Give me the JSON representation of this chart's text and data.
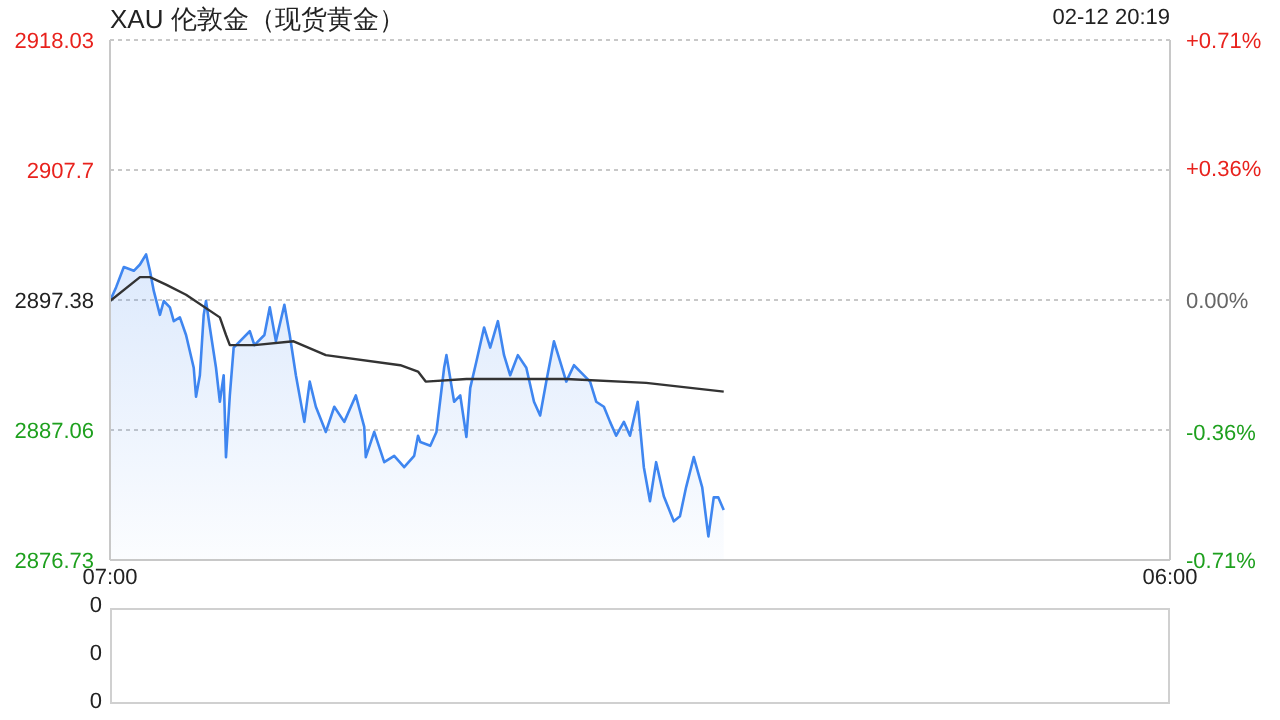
{
  "chart_data": [
    {
      "type": "line",
      "title": "XAU 伦敦金（现货黄金）",
      "subtitle": "02-12 20:19",
      "xlim": [
        "--02-12T07:00",
        "--02-13T06:00"
      ],
      "xticks": [
        {
          "value": "--02-12T07:00",
          "label": "07:00"
        },
        {
          "value": "--02-13T06:00",
          "label": "06:00"
        }
      ],
      "ylim": [
        2876.73,
        2918.03
      ],
      "yticks": [
        2876.73,
        2887.06,
        2897.38,
        2907.7,
        2918.03
      ],
      "y2lim": [
        -0.71,
        0.71
      ],
      "y2ticks": [
        {
          "value": -0.71,
          "label": "-0.71%"
        },
        {
          "value": -0.36,
          "label": "-0.36%"
        },
        {
          "value": 0,
          "label": "0.00%"
        },
        {
          "value": 0.36,
          "label": "+0.36%"
        },
        {
          "value": 0.71,
          "label": "+0.71%"
        }
      ],
      "grid": "y",
      "legend": false,
      "marker": "none",
      "series": [
        {
          "type": "area",
          "color": "#3f86f0",
          "x": [
            "--02-12T07:00",
            "--02-12T07:08",
            "--02-12T07:18",
            "--02-12T07:31",
            "--02-12T07:39",
            "--02-12T07:47",
            "--02-12T07:52",
            "--02-12T07:57",
            "--02-12T08:05",
            "--02-12T08:10",
            "--02-12T08:18",
            "--02-12T08:23",
            "--02-12T08:31",
            "--02-12T08:39",
            "--02-12T08:49",
            "--02-12T08:52",
            "--02-12T08:57",
            "--02-12T09:02",
            "--02-12T09:05",
            "--02-12T09:10",
            "--02-12T09:18",
            "--02-12T09:23",
            "--02-12T09:28",
            "--02-12T09:31",
            "--02-12T09:36",
            "--02-12T09:41",
            "--02-12T09:49",
            "--02-12T10:02",
            "--02-12T10:08",
            "--02-12T10:21",
            "--02-12T10:28",
            "--02-12T10:36",
            "--02-12T10:47",
            "--02-12T10:54",
            "--02-12T11:02",
            "--02-12T11:13",
            "--02-12T11:20",
            "--02-12T11:28",
            "--02-12T11:41",
            "--02-12T11:52",
            "--02-12T12:05",
            "--02-12T12:20",
            "--02-12T12:31",
            "--02-12T12:33",
            "--02-12T12:44",
            "--02-12T12:57",
            "--02-12T13:10",
            "--02-12T13:23",
            "--02-12T13:36",
            "--02-12T13:41",
            "--02-12T13:44",
            "--02-12T13:57",
            "--02-12T14:05",
            "--02-12T14:15",
            "--02-12T14:18",
            "--02-12T14:28",
            "--02-12T14:36",
            "--02-12T14:44",
            "--02-12T14:49",
            "--02-12T14:57",
            "--02-12T15:07",
            "--02-12T15:15",
            "--02-12T15:25",
            "--02-12T15:33",
            "--02-12T15:41",
            "--02-12T15:51",
            "--02-12T16:02",
            "--02-12T16:12",
            "--02-12T16:20",
            "--02-12T16:28",
            "--02-12T16:38",
            "--02-12T16:46",
            "--02-12T16:54",
            "--02-12T17:04",
            "--02-12T17:17",
            "--02-12T17:25",
            "--02-12T17:33",
            "--02-12T17:43",
            "--02-12T17:51",
            "--02-12T17:59",
            "--02-12T18:09",
            "--02-12T18:17",
            "--02-12T18:27",
            "--02-12T18:35",
            "--02-12T18:43",
            "--02-12T18:51",
            "--02-12T19:01",
            "--02-12T19:14",
            "--02-12T19:22",
            "--02-12T19:30",
            "--02-12T19:40",
            "--02-12T19:51",
            "--02-12T19:59",
            "--02-12T20:06",
            "--02-12T20:12",
            "--02-12T20:19"
          ],
          "values": [
            2897.3,
            2898.4,
            2900.0,
            2899.7,
            2900.2,
            2901.0,
            2899.7,
            2898.1,
            2896.2,
            2897.3,
            2896.8,
            2895.7,
            2896.0,
            2894.6,
            2892.0,
            2889.7,
            2891.4,
            2896.2,
            2897.3,
            2895.2,
            2892.0,
            2889.3,
            2891.4,
            2884.9,
            2889.8,
            2893.6,
            2894.1,
            2894.9,
            2893.8,
            2894.6,
            2896.8,
            2894.1,
            2897.0,
            2894.6,
            2891.4,
            2887.7,
            2890.9,
            2888.9,
            2886.9,
            2888.9,
            2887.7,
            2889.8,
            2887.3,
            2884.9,
            2886.9,
            2884.5,
            2885.0,
            2884.1,
            2885.0,
            2886.6,
            2886.1,
            2885.8,
            2886.9,
            2892.0,
            2893.0,
            2889.3,
            2889.8,
            2886.5,
            2890.4,
            2892.5,
            2895.2,
            2893.6,
            2895.7,
            2893.0,
            2891.4,
            2893.0,
            2892.0,
            2889.3,
            2888.2,
            2890.9,
            2894.1,
            2892.5,
            2890.9,
            2892.2,
            2891.4,
            2890.9,
            2889.3,
            2888.9,
            2887.7,
            2886.6,
            2887.7,
            2886.6,
            2889.3,
            2884.1,
            2881.4,
            2884.5,
            2881.8,
            2879.8,
            2880.2,
            2882.5,
            2884.9,
            2882.5,
            2878.6,
            2881.7,
            2881.7,
            2880.7
          ]
        },
        {
          "color": "#333333",
          "x": [
            "--02-12T07:00",
            "--02-12T07:39",
            "--02-12T07:52",
            "--02-12T08:13",
            "--02-12T08:39",
            "--02-12T09:23",
            "--02-12T09:31",
            "--02-12T09:36",
            "--02-12T10:08",
            "--02-12T10:59",
            "--02-12T11:41",
            "--02-12T13:18",
            "--02-12T13:41",
            "--02-12T13:51",
            "--02-12T14:44",
            "--02-12T16:54",
            "--02-12T18:38",
            "--02-12T20:19"
          ],
          "values": [
            2897.3,
            2899.2,
            2899.2,
            2898.6,
            2897.8,
            2896.0,
            2894.6,
            2893.8,
            2893.8,
            2894.1,
            2893.0,
            2892.2,
            2891.7,
            2890.9,
            2891.1,
            2891.1,
            2890.8,
            2890.1
          ]
        }
      ]
    },
    {
      "type": "other",
      "annotations": [
        "0",
        "0",
        "0"
      ]
    }
  ]
}
